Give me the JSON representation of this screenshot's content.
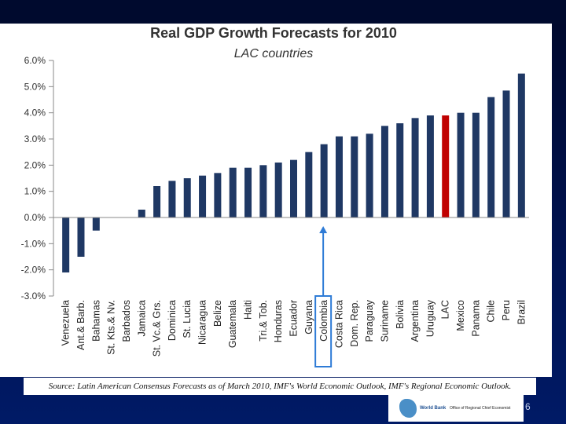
{
  "chart_data": {
    "type": "bar",
    "title": "Real GDP Growth Forecasts for 2010",
    "subtitle": "LAC countries",
    "xlabel": "",
    "ylabel": "",
    "ylim": [
      -3.0,
      6.0
    ],
    "yticks": [
      "6.0%",
      "5.0%",
      "4.0%",
      "3.0%",
      "2.0%",
      "1.0%",
      "0.0%",
      "-1.0%",
      "-2.0%",
      "-3.0%"
    ],
    "ytick_values": [
      6,
      5,
      4,
      3,
      2,
      1,
      0,
      -1,
      -2,
      -3
    ],
    "categories": [
      "Venezuela",
      "Ant.& Barb.",
      "Bahamas",
      "St. Kts.& Nv.",
      "Barbados",
      "Jamaica",
      "St. Vc.& Grs.",
      "Dominica",
      "St. Lucia",
      "Nicaragua",
      "Belize",
      "Guatemala",
      "Haiti",
      "Tri.& Tob.",
      "Honduras",
      "Ecuador",
      "Guyana",
      "Colombia",
      "Costa Rica",
      "Dom. Rep.",
      "Paraguay",
      "Suriname",
      "Bolivia",
      "Argentina",
      "Uruguay",
      "LAC",
      "Mexico",
      "Panama",
      "Chile",
      "Peru",
      "Brazil"
    ],
    "values": [
      -2.1,
      -1.5,
      -0.5,
      0.0,
      0.0,
      0.3,
      1.2,
      1.4,
      1.5,
      1.6,
      1.7,
      1.9,
      1.9,
      2.0,
      2.1,
      2.2,
      2.5,
      2.8,
      3.1,
      3.1,
      3.2,
      3.5,
      3.6,
      3.8,
      3.9,
      3.9,
      4.0,
      4.0,
      4.6,
      4.85,
      5.5
    ],
    "highlight_category": "LAC",
    "annotated_category": "Colombia",
    "colors": {
      "bar": "#1f3864",
      "highlight": "#c00000",
      "annotation": "#2e7bd6",
      "axis": "#888888"
    }
  },
  "source_text": "Source: Latin American Consensus Forecasts as of March 2010, IMF's World Economic Outlook, IMF's Regional Economic Outlook.",
  "logo": {
    "brand": "World Bank",
    "office": "Office of Regional Chief Economist"
  },
  "page_number": "6"
}
